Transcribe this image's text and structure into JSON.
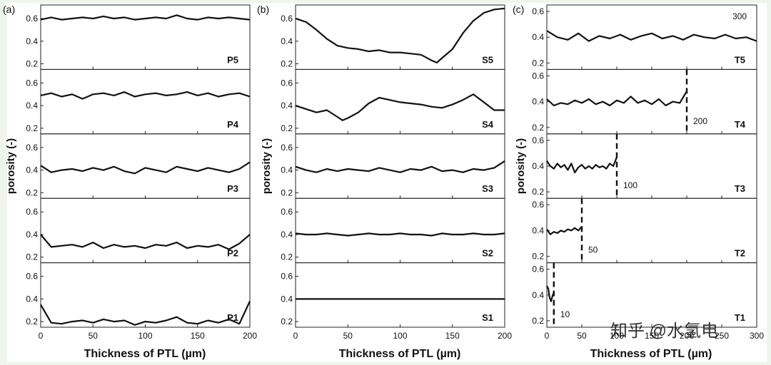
{
  "figure": {
    "watermark": "知乎 @水氢电"
  },
  "chart_data": [
    {
      "type": "line",
      "panel_label": "(a)",
      "xlabel": "Thickness of PTL (µm)",
      "ylabel": "porosity (-)",
      "xlim": [
        0,
        200
      ],
      "x_ticks": [
        0,
        50,
        100,
        150,
        200
      ],
      "ylim": [
        0.15,
        0.72
      ],
      "y_ticks": [
        0.2,
        0.4,
        0.6
      ],
      "subplots": [
        {
          "name": "P5",
          "x": [
            0,
            10,
            20,
            30,
            40,
            50,
            60,
            70,
            80,
            90,
            100,
            110,
            120,
            130,
            140,
            150,
            160,
            170,
            180,
            190,
            200
          ],
          "y": [
            0.59,
            0.61,
            0.59,
            0.6,
            0.61,
            0.6,
            0.62,
            0.6,
            0.61,
            0.59,
            0.6,
            0.61,
            0.6,
            0.63,
            0.6,
            0.59,
            0.61,
            0.6,
            0.61,
            0.6,
            0.59
          ]
        },
        {
          "name": "P4",
          "x": [
            0,
            10,
            20,
            30,
            40,
            50,
            60,
            70,
            80,
            90,
            100,
            110,
            120,
            130,
            140,
            150,
            160,
            170,
            180,
            190,
            200
          ],
          "y": [
            0.49,
            0.51,
            0.48,
            0.5,
            0.46,
            0.5,
            0.51,
            0.49,
            0.52,
            0.48,
            0.5,
            0.51,
            0.49,
            0.5,
            0.52,
            0.49,
            0.51,
            0.48,
            0.5,
            0.51,
            0.48
          ]
        },
        {
          "name": "P3",
          "x": [
            0,
            10,
            20,
            30,
            40,
            50,
            60,
            70,
            80,
            90,
            100,
            110,
            120,
            130,
            140,
            150,
            160,
            170,
            180,
            190,
            200
          ],
          "y": [
            0.44,
            0.38,
            0.4,
            0.41,
            0.39,
            0.42,
            0.4,
            0.43,
            0.39,
            0.37,
            0.42,
            0.4,
            0.38,
            0.43,
            0.41,
            0.39,
            0.42,
            0.4,
            0.38,
            0.41,
            0.47
          ]
        },
        {
          "name": "P2",
          "x": [
            0,
            10,
            20,
            30,
            40,
            50,
            60,
            70,
            80,
            90,
            100,
            110,
            120,
            130,
            140,
            150,
            160,
            170,
            180,
            190,
            200
          ],
          "y": [
            0.4,
            0.29,
            0.3,
            0.31,
            0.29,
            0.33,
            0.28,
            0.31,
            0.29,
            0.3,
            0.28,
            0.31,
            0.3,
            0.33,
            0.28,
            0.3,
            0.29,
            0.31,
            0.27,
            0.32,
            0.4
          ]
        },
        {
          "name": "P1",
          "x": [
            0,
            10,
            20,
            30,
            40,
            50,
            60,
            70,
            80,
            90,
            100,
            110,
            120,
            130,
            140,
            150,
            160,
            170,
            180,
            190,
            200
          ],
          "y": [
            0.35,
            0.19,
            0.18,
            0.2,
            0.21,
            0.19,
            0.22,
            0.2,
            0.21,
            0.17,
            0.2,
            0.19,
            0.21,
            0.24,
            0.19,
            0.18,
            0.21,
            0.19,
            0.22,
            0.18,
            0.38
          ]
        }
      ]
    },
    {
      "type": "line",
      "panel_label": "(b)",
      "xlabel": "Thickness of PTL (µm)",
      "ylabel": "porosity (-)",
      "xlim": [
        0,
        200
      ],
      "x_ticks": [
        0,
        50,
        100,
        150,
        200
      ],
      "ylim": [
        0.15,
        0.72
      ],
      "y_ticks": [
        0.2,
        0.4,
        0.6
      ],
      "subplots": [
        {
          "name": "S5",
          "x": [
            0,
            10,
            20,
            30,
            40,
            50,
            60,
            70,
            80,
            90,
            100,
            110,
            120,
            130,
            135,
            140,
            150,
            160,
            170,
            180,
            190,
            200
          ],
          "y": [
            0.6,
            0.57,
            0.5,
            0.42,
            0.36,
            0.34,
            0.33,
            0.31,
            0.32,
            0.3,
            0.3,
            0.29,
            0.28,
            0.23,
            0.21,
            0.25,
            0.33,
            0.47,
            0.58,
            0.65,
            0.68,
            0.69
          ]
        },
        {
          "name": "S4",
          "x": [
            0,
            10,
            20,
            30,
            40,
            45,
            50,
            60,
            70,
            80,
            90,
            100,
            110,
            120,
            130,
            140,
            150,
            160,
            170,
            180,
            190,
            200
          ],
          "y": [
            0.4,
            0.37,
            0.34,
            0.36,
            0.3,
            0.27,
            0.29,
            0.34,
            0.42,
            0.47,
            0.45,
            0.43,
            0.42,
            0.41,
            0.39,
            0.38,
            0.41,
            0.45,
            0.5,
            0.43,
            0.36,
            0.36
          ]
        },
        {
          "name": "S3",
          "x": [
            0,
            10,
            20,
            30,
            40,
            50,
            60,
            70,
            80,
            90,
            100,
            110,
            120,
            130,
            140,
            150,
            160,
            170,
            180,
            190,
            200
          ],
          "y": [
            0.43,
            0.4,
            0.38,
            0.41,
            0.39,
            0.41,
            0.4,
            0.39,
            0.42,
            0.4,
            0.38,
            0.41,
            0.4,
            0.43,
            0.39,
            0.4,
            0.38,
            0.41,
            0.4,
            0.42,
            0.48
          ]
        },
        {
          "name": "S2",
          "x": [
            0,
            10,
            20,
            30,
            40,
            50,
            60,
            70,
            80,
            90,
            100,
            110,
            120,
            130,
            140,
            150,
            160,
            170,
            180,
            190,
            200
          ],
          "y": [
            0.41,
            0.4,
            0.4,
            0.41,
            0.4,
            0.39,
            0.4,
            0.41,
            0.4,
            0.4,
            0.41,
            0.4,
            0.4,
            0.39,
            0.41,
            0.4,
            0.4,
            0.41,
            0.4,
            0.4,
            0.41
          ]
        },
        {
          "name": "S1",
          "x": [
            0,
            10,
            20,
            30,
            40,
            50,
            60,
            70,
            80,
            90,
            100,
            110,
            120,
            130,
            140,
            150,
            160,
            170,
            180,
            190,
            200
          ],
          "y": [
            0.4,
            0.4,
            0.4,
            0.4,
            0.4,
            0.4,
            0.4,
            0.4,
            0.4,
            0.4,
            0.4,
            0.4,
            0.4,
            0.4,
            0.4,
            0.4,
            0.4,
            0.4,
            0.4,
            0.4,
            0.4
          ]
        }
      ]
    },
    {
      "type": "line",
      "panel_label": "(c)",
      "xlabel": "Thickness of PTL (µm)",
      "ylabel": "porosity (-)",
      "xlim": [
        0,
        300
      ],
      "x_ticks": [
        0,
        50,
        100,
        150,
        200,
        250,
        300
      ],
      "ylim": [
        0.15,
        0.65
      ],
      "y_ticks": [
        0.2,
        0.4,
        0.6
      ],
      "subplots": [
        {
          "name": "T5",
          "thickness_marker": 300,
          "thickness_label": "300",
          "x": [
            0,
            15,
            30,
            45,
            60,
            75,
            90,
            105,
            120,
            135,
            150,
            165,
            180,
            195,
            210,
            225,
            240,
            255,
            270,
            285,
            300
          ],
          "y": [
            0.45,
            0.4,
            0.38,
            0.43,
            0.37,
            0.41,
            0.39,
            0.42,
            0.38,
            0.41,
            0.43,
            0.39,
            0.41,
            0.38,
            0.42,
            0.4,
            0.39,
            0.42,
            0.39,
            0.4,
            0.37
          ]
        },
        {
          "name": "T4",
          "thickness_marker": 200,
          "thickness_label": "200",
          "x": [
            0,
            10,
            20,
            30,
            40,
            50,
            60,
            70,
            80,
            90,
            100,
            110,
            120,
            130,
            140,
            150,
            160,
            170,
            180,
            190,
            200
          ],
          "y": [
            0.42,
            0.37,
            0.39,
            0.38,
            0.41,
            0.39,
            0.42,
            0.38,
            0.4,
            0.37,
            0.41,
            0.39,
            0.44,
            0.39,
            0.41,
            0.38,
            0.42,
            0.37,
            0.4,
            0.39,
            0.48
          ]
        },
        {
          "name": "T3",
          "thickness_marker": 100,
          "thickness_label": "100",
          "x": [
            0,
            5,
            10,
            15,
            20,
            25,
            30,
            35,
            40,
            45,
            50,
            55,
            60,
            65,
            70,
            75,
            80,
            85,
            90,
            95,
            100
          ],
          "y": [
            0.44,
            0.4,
            0.38,
            0.42,
            0.39,
            0.41,
            0.37,
            0.42,
            0.35,
            0.39,
            0.41,
            0.38,
            0.4,
            0.38,
            0.41,
            0.39,
            0.4,
            0.38,
            0.42,
            0.4,
            0.47
          ]
        },
        {
          "name": "T2",
          "thickness_marker": 50,
          "thickness_label": "50",
          "x": [
            0,
            5,
            10,
            15,
            20,
            25,
            30,
            35,
            40,
            45,
            50
          ],
          "y": [
            0.41,
            0.37,
            0.39,
            0.38,
            0.4,
            0.39,
            0.41,
            0.4,
            0.42,
            0.4,
            0.43
          ]
        },
        {
          "name": "T1",
          "thickness_marker": 10,
          "thickness_label": "10",
          "x": [
            0,
            2,
            4,
            6,
            8,
            10
          ],
          "y": [
            0.47,
            0.45,
            0.38,
            0.35,
            0.39,
            0.42
          ]
        }
      ]
    }
  ]
}
